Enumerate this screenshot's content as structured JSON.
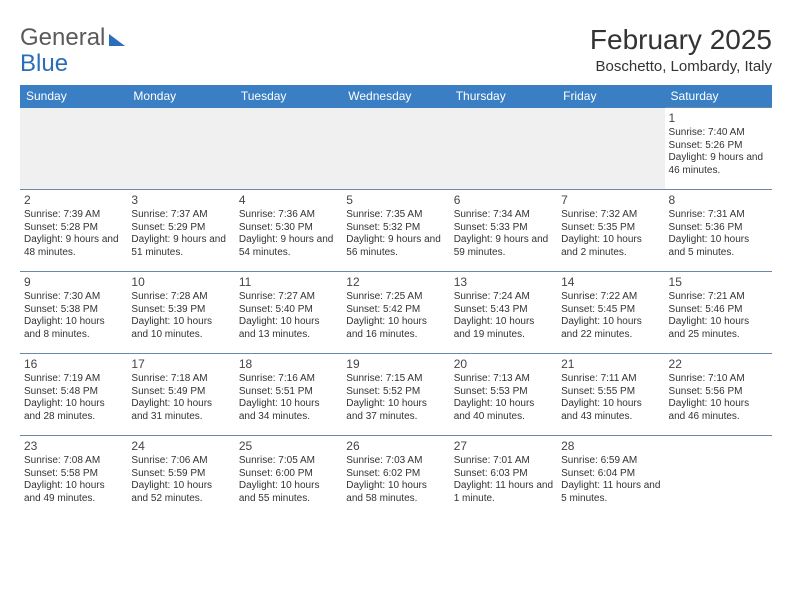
{
  "logo": {
    "part1": "General",
    "part2": "Blue"
  },
  "title": "February 2025",
  "location": "Boschetto, Lombardy, Italy",
  "colors": {
    "header_bg": "#3a7fc4",
    "header_text": "#ffffff",
    "border": "#6a88a8",
    "empty_bg": "#f0f0f0",
    "text": "#333333",
    "logo_gray": "#5a5a5a",
    "logo_blue": "#2a6db8"
  },
  "typography": {
    "title_fontsize": 28,
    "location_fontsize": 15,
    "dayhead_fontsize": 12,
    "daynum_fontsize": 12,
    "body_fontsize": 10
  },
  "day_headers": [
    "Sunday",
    "Monday",
    "Tuesday",
    "Wednesday",
    "Thursday",
    "Friday",
    "Saturday"
  ],
  "weeks": [
    [
      null,
      null,
      null,
      null,
      null,
      null,
      {
        "n": "1",
        "sunrise": "7:40 AM",
        "sunset": "5:26 PM",
        "daylight": "9 hours and 46 minutes."
      }
    ],
    [
      {
        "n": "2",
        "sunrise": "7:39 AM",
        "sunset": "5:28 PM",
        "daylight": "9 hours and 48 minutes."
      },
      {
        "n": "3",
        "sunrise": "7:37 AM",
        "sunset": "5:29 PM",
        "daylight": "9 hours and 51 minutes."
      },
      {
        "n": "4",
        "sunrise": "7:36 AM",
        "sunset": "5:30 PM",
        "daylight": "9 hours and 54 minutes."
      },
      {
        "n": "5",
        "sunrise": "7:35 AM",
        "sunset": "5:32 PM",
        "daylight": "9 hours and 56 minutes."
      },
      {
        "n": "6",
        "sunrise": "7:34 AM",
        "sunset": "5:33 PM",
        "daylight": "9 hours and 59 minutes."
      },
      {
        "n": "7",
        "sunrise": "7:32 AM",
        "sunset": "5:35 PM",
        "daylight": "10 hours and 2 minutes."
      },
      {
        "n": "8",
        "sunrise": "7:31 AM",
        "sunset": "5:36 PM",
        "daylight": "10 hours and 5 minutes."
      }
    ],
    [
      {
        "n": "9",
        "sunrise": "7:30 AM",
        "sunset": "5:38 PM",
        "daylight": "10 hours and 8 minutes."
      },
      {
        "n": "10",
        "sunrise": "7:28 AM",
        "sunset": "5:39 PM",
        "daylight": "10 hours and 10 minutes."
      },
      {
        "n": "11",
        "sunrise": "7:27 AM",
        "sunset": "5:40 PM",
        "daylight": "10 hours and 13 minutes."
      },
      {
        "n": "12",
        "sunrise": "7:25 AM",
        "sunset": "5:42 PM",
        "daylight": "10 hours and 16 minutes."
      },
      {
        "n": "13",
        "sunrise": "7:24 AM",
        "sunset": "5:43 PM",
        "daylight": "10 hours and 19 minutes."
      },
      {
        "n": "14",
        "sunrise": "7:22 AM",
        "sunset": "5:45 PM",
        "daylight": "10 hours and 22 minutes."
      },
      {
        "n": "15",
        "sunrise": "7:21 AM",
        "sunset": "5:46 PM",
        "daylight": "10 hours and 25 minutes."
      }
    ],
    [
      {
        "n": "16",
        "sunrise": "7:19 AM",
        "sunset": "5:48 PM",
        "daylight": "10 hours and 28 minutes."
      },
      {
        "n": "17",
        "sunrise": "7:18 AM",
        "sunset": "5:49 PM",
        "daylight": "10 hours and 31 minutes."
      },
      {
        "n": "18",
        "sunrise": "7:16 AM",
        "sunset": "5:51 PM",
        "daylight": "10 hours and 34 minutes."
      },
      {
        "n": "19",
        "sunrise": "7:15 AM",
        "sunset": "5:52 PM",
        "daylight": "10 hours and 37 minutes."
      },
      {
        "n": "20",
        "sunrise": "7:13 AM",
        "sunset": "5:53 PM",
        "daylight": "10 hours and 40 minutes."
      },
      {
        "n": "21",
        "sunrise": "7:11 AM",
        "sunset": "5:55 PM",
        "daylight": "10 hours and 43 minutes."
      },
      {
        "n": "22",
        "sunrise": "7:10 AM",
        "sunset": "5:56 PM",
        "daylight": "10 hours and 46 minutes."
      }
    ],
    [
      {
        "n": "23",
        "sunrise": "7:08 AM",
        "sunset": "5:58 PM",
        "daylight": "10 hours and 49 minutes."
      },
      {
        "n": "24",
        "sunrise": "7:06 AM",
        "sunset": "5:59 PM",
        "daylight": "10 hours and 52 minutes."
      },
      {
        "n": "25",
        "sunrise": "7:05 AM",
        "sunset": "6:00 PM",
        "daylight": "10 hours and 55 minutes."
      },
      {
        "n": "26",
        "sunrise": "7:03 AM",
        "sunset": "6:02 PM",
        "daylight": "10 hours and 58 minutes."
      },
      {
        "n": "27",
        "sunrise": "7:01 AM",
        "sunset": "6:03 PM",
        "daylight": "11 hours and 1 minute."
      },
      {
        "n": "28",
        "sunrise": "6:59 AM",
        "sunset": "6:04 PM",
        "daylight": "11 hours and 5 minutes."
      },
      null
    ]
  ],
  "labels": {
    "sunrise": "Sunrise:",
    "sunset": "Sunset:",
    "daylight": "Daylight:"
  }
}
